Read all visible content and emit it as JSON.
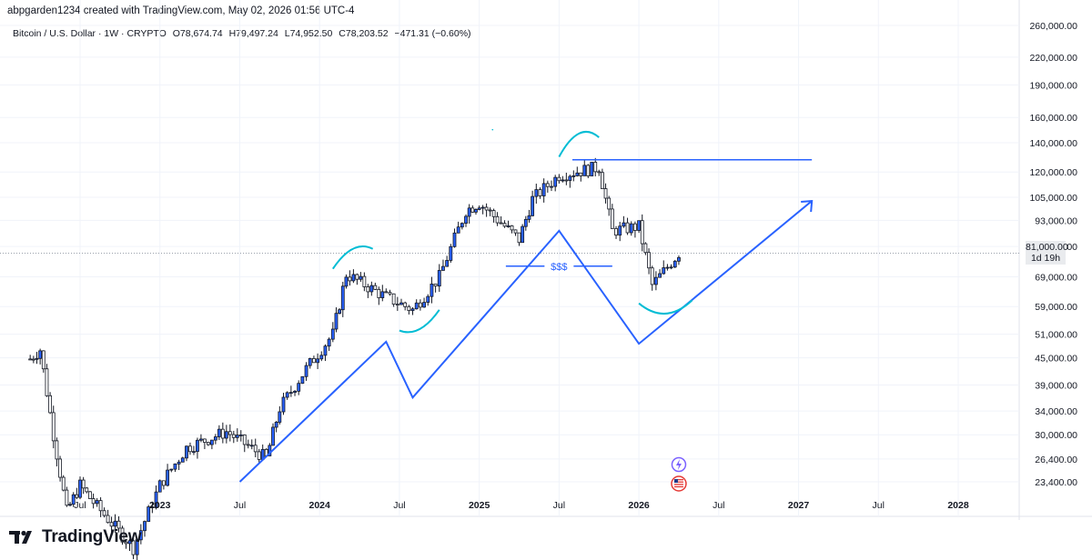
{
  "header": {
    "attribution": "abpgarden1234 created with TradingView.com, May 02, 2026 01:56 UTC-4"
  },
  "legend": {
    "symbol": "Bitcoin / U.S. Dollar · 1W · CRYPTO",
    "open": "O78,674.74",
    "high": "H79,497.24",
    "low": "L74,952.50",
    "close": "C78,203.52",
    "change": "−471.31 (−0.60%)"
  },
  "price_label": {
    "price": "81,000.00",
    "countdown": "1d 19h"
  },
  "footer": {
    "brand": "TradingView"
  },
  "annotations": {
    "liquidity_label": "$$$"
  },
  "colors": {
    "drawing_blue": "#2962ff",
    "arc_cyan": "#00bcd4",
    "candle_up": "#2962ff",
    "candle_down": "#ffffff",
    "candle_outline": "#131722"
  },
  "icons": [
    "tradingview-logo-icon",
    "lightning-event-icon",
    "us-flag-event-icon"
  ],
  "chart_data": {
    "type": "candlestick",
    "symbol": "Bitcoin / U.S. Dollar",
    "timeframe": "1W",
    "y_scale": "log",
    "y_ticks": [
      {
        "value": 260000,
        "label": "260,000.00"
      },
      {
        "value": 220000,
        "label": "220,000.00"
      },
      {
        "value": 190000,
        "label": "190,000.00"
      },
      {
        "value": 160000,
        "label": "160,000.00"
      },
      {
        "value": 140000,
        "label": "140,000.00"
      },
      {
        "value": 120000,
        "label": "120,000.00"
      },
      {
        "value": 105000,
        "label": "105,000.00"
      },
      {
        "value": 93000,
        "label": "93,000.00"
      },
      {
        "value": 81000,
        "label": "81,000.00"
      },
      {
        "value": 69000,
        "label": "69,000.00"
      },
      {
        "value": 59000,
        "label": "59,000.00"
      },
      {
        "value": 51000,
        "label": "51,000.00"
      },
      {
        "value": 45000,
        "label": "45,000.00"
      },
      {
        "value": 39000,
        "label": "39,000.00"
      },
      {
        "value": 34000,
        "label": "34,000.00"
      },
      {
        "value": 30000,
        "label": "30,000.00"
      },
      {
        "value": 26400,
        "label": "26,400.00"
      },
      {
        "value": 23400,
        "label": "23,400.00"
      }
    ],
    "x_ticks": [
      {
        "date": "2022-07",
        "label": "Jul",
        "year": false
      },
      {
        "date": "2023-01",
        "label": "2023",
        "year": true
      },
      {
        "date": "2023-07",
        "label": "Jul",
        "year": false
      },
      {
        "date": "2024-01",
        "label": "2024",
        "year": true
      },
      {
        "date": "2024-07",
        "label": "Jul",
        "year": false
      },
      {
        "date": "2025-01",
        "label": "2025",
        "year": true
      },
      {
        "date": "2025-07",
        "label": "Jul",
        "year": false
      },
      {
        "date": "2026-01",
        "label": "2026",
        "year": true
      },
      {
        "date": "2026-07",
        "label": "Jul",
        "year": false
      },
      {
        "date": "2027-01",
        "label": "2027",
        "year": true
      },
      {
        "date": "2027-07",
        "label": "Jul",
        "year": false
      },
      {
        "date": "2028-01",
        "label": "2028",
        "year": true
      }
    ],
    "closes": [
      {
        "date": "2022-03",
        "close": 44000
      },
      {
        "date": "2022-04",
        "close": 47000
      },
      {
        "date": "2022-05",
        "close": 30000
      },
      {
        "date": "2022-06",
        "close": 20000
      },
      {
        "date": "2022-07",
        "close": 23000
      },
      {
        "date": "2022-08",
        "close": 21000
      },
      {
        "date": "2022-11",
        "close": 16500
      },
      {
        "date": "2023-01",
        "close": 23000
      },
      {
        "date": "2023-03",
        "close": 28000
      },
      {
        "date": "2023-06",
        "close": 30500
      },
      {
        "date": "2023-09",
        "close": 26500
      },
      {
        "date": "2023-10",
        "close": 34500
      },
      {
        "date": "2023-12",
        "close": 42500
      },
      {
        "date": "2024-02",
        "close": 51000
      },
      {
        "date": "2024-03",
        "close": 70000
      },
      {
        "date": "2024-06",
        "close": 62000
      },
      {
        "date": "2024-08",
        "close": 58000
      },
      {
        "date": "2024-10",
        "close": 69000
      },
      {
        "date": "2024-12",
        "close": 98000
      },
      {
        "date": "2025-01",
        "close": 102000
      },
      {
        "date": "2025-04",
        "close": 84000
      },
      {
        "date": "2025-05",
        "close": 104000
      },
      {
        "date": "2025-07",
        "close": 118000
      },
      {
        "date": "2025-10",
        "close": 123000
      },
      {
        "date": "2025-11",
        "close": 88000
      },
      {
        "date": "2026-01",
        "close": 90000
      },
      {
        "date": "2026-02",
        "close": 66000
      },
      {
        "date": "2026-04",
        "close": 78203.52
      }
    ],
    "drawings": {
      "resistance_level": 128000,
      "liquidity_level": 73000,
      "zigzag": [
        {
          "date": "2023-07",
          "price": 23400
        },
        {
          "date": "2024-06",
          "price": 49000
        },
        {
          "date": "2024-08",
          "price": 36500
        },
        {
          "date": "2025-07",
          "price": 88000
        },
        {
          "date": "2026-01",
          "price": 48500
        },
        {
          "date": "2027-02",
          "price": 103000
        }
      ]
    }
  }
}
